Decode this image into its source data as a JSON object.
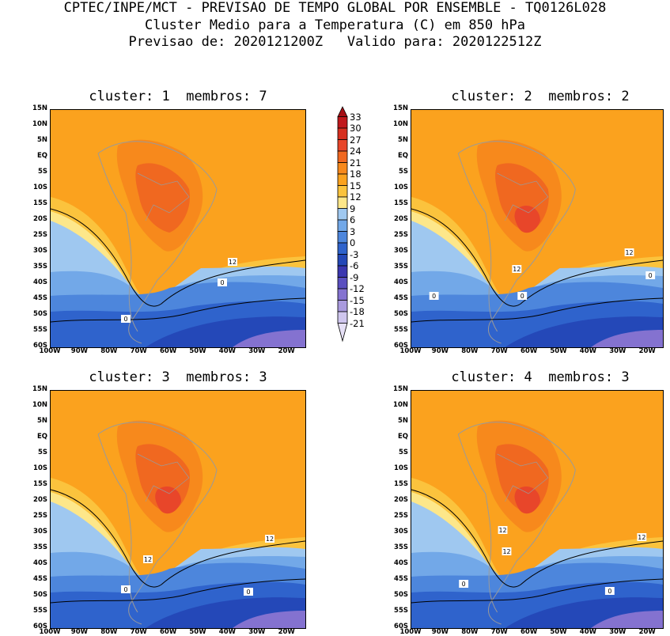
{
  "header": {
    "line1": "CPTEC/INPE/MCT - PREVISAO DE TEMPO GLOBAL POR ENSEMBLE - TQ0126L028",
    "line2": "Cluster Medio para a Temperatura (C) em 850 hPa",
    "line3": "Previsao de: 2020121200Z   Valido para: 2020122512Z"
  },
  "panels": [
    {
      "title": "cluster: 1  membros: 7",
      "contour_labels": [
        "12",
        "0",
        "0"
      ]
    },
    {
      "title": "cluster: 2  membros: 2",
      "contour_labels": [
        "12",
        "12",
        "0",
        "0",
        "0"
      ]
    },
    {
      "title": "cluster: 3  membros: 3",
      "contour_labels": [
        "12",
        "12",
        "0",
        "0"
      ]
    },
    {
      "title": "cluster: 4  membros: 3",
      "contour_labels": [
        "12",
        "12",
        "12",
        "0",
        "0"
      ]
    }
  ],
  "lat_labels": [
    "15N",
    "10N",
    "5N",
    "EQ",
    "5S",
    "10S",
    "15S",
    "20S",
    "25S",
    "30S",
    "35S",
    "40S",
    "45S",
    "50S",
    "55S",
    "60S"
  ],
  "lon_labels": [
    "100W",
    "90W",
    "80W",
    "70W",
    "60W",
    "50W",
    "40W",
    "30W",
    "20W"
  ],
  "colorbar": {
    "levels": [
      "33",
      "30",
      "27",
      "24",
      "21",
      "18",
      "15",
      "12",
      "9",
      "6",
      "3",
      "0",
      "-3",
      "-6",
      "-9",
      "-12",
      "-15",
      "-18",
      "-21"
    ],
    "colors": [
      "#a50f15",
      "#c0181c",
      "#d7301f",
      "#e8462a",
      "#f06820",
      "#f7891c",
      "#fba21e",
      "#fbc33d",
      "#fde78a",
      "#9fc8f0",
      "#72a8e8",
      "#4d86dc",
      "#2f63cc",
      "#2448b8",
      "#3b37b0",
      "#5a4fc0",
      "#8472d0",
      "#a99ade",
      "#cfc6ee",
      "#e6e0f6"
    ]
  }
}
